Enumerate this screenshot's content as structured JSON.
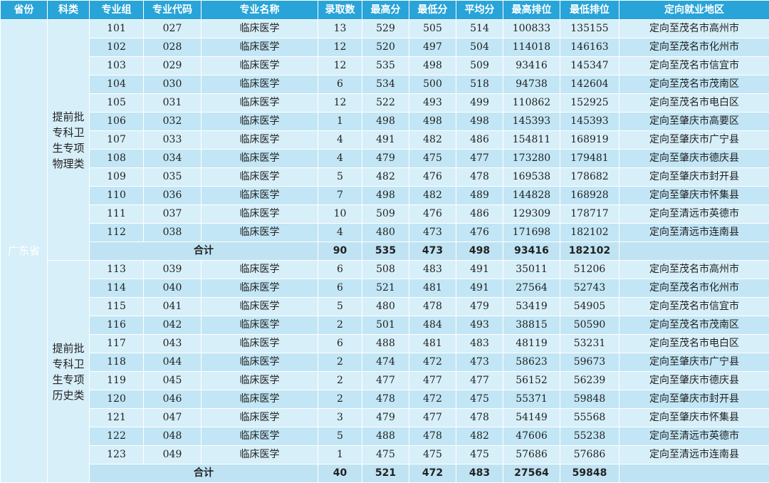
{
  "headers": [
    "省份",
    "科类",
    "专业组",
    "专业代码",
    "专业名称",
    "录取数",
    "最高分",
    "最低分",
    "平均分",
    "最高排位",
    "最低排位",
    "定向就业地区"
  ],
  "province": "广东省",
  "groups": [
    {
      "category": "提前批专科卫生专项物理类",
      "rows": [
        [
          "101",
          "027",
          "临床医学",
          "13",
          "529",
          "505",
          "514",
          "100833",
          "135155",
          "定向至茂名市高州市"
        ],
        [
          "102",
          "028",
          "临床医学",
          "12",
          "520",
          "497",
          "504",
          "114018",
          "146163",
          "定向至茂名市化州市"
        ],
        [
          "103",
          "029",
          "临床医学",
          "12",
          "535",
          "498",
          "509",
          "93416",
          "145347",
          "定向至茂名市信宜市"
        ],
        [
          "104",
          "030",
          "临床医学",
          "6",
          "534",
          "500",
          "518",
          "94738",
          "142604",
          "定向至茂名市茂南区"
        ],
        [
          "105",
          "031",
          "临床医学",
          "12",
          "522",
          "493",
          "499",
          "110862",
          "152925",
          "定向至茂名市电白区"
        ],
        [
          "106",
          "032",
          "临床医学",
          "1",
          "498",
          "498",
          "498",
          "145393",
          "145393",
          "定向至肇庆市高要区"
        ],
        [
          "107",
          "033",
          "临床医学",
          "4",
          "491",
          "482",
          "486",
          "154811",
          "168919",
          "定向至肇庆市广宁县"
        ],
        [
          "108",
          "034",
          "临床医学",
          "4",
          "479",
          "475",
          "477",
          "173280",
          "179481",
          "定向至肇庆市德庆县"
        ],
        [
          "109",
          "035",
          "临床医学",
          "5",
          "482",
          "476",
          "478",
          "169538",
          "178682",
          "定向至肇庆市封开县"
        ],
        [
          "110",
          "036",
          "临床医学",
          "7",
          "498",
          "482",
          "489",
          "144828",
          "168928",
          "定向至肇庆市怀集县"
        ],
        [
          "111",
          "037",
          "临床医学",
          "10",
          "509",
          "476",
          "486",
          "129309",
          "178717",
          "定向至清远市英德市"
        ],
        [
          "112",
          "038",
          "临床医学",
          "4",
          "480",
          "473",
          "476",
          "171698",
          "182102",
          "定向至清远市连南县"
        ]
      ],
      "total": {
        "label": "合计",
        "count": "90",
        "max": "535",
        "min": "473",
        "avg": "498",
        "max_rank": "93416",
        "min_rank": "182102"
      }
    },
    {
      "category": "提前批专科卫生专项历史类",
      "rows": [
        [
          "113",
          "039",
          "临床医学",
          "6",
          "508",
          "483",
          "491",
          "35011",
          "51206",
          "定向至茂名市高州市"
        ],
        [
          "114",
          "040",
          "临床医学",
          "6",
          "521",
          "481",
          "491",
          "27564",
          "52743",
          "定向至茂名市化州市"
        ],
        [
          "115",
          "041",
          "临床医学",
          "5",
          "480",
          "478",
          "479",
          "53419",
          "54905",
          "定向至茂名市信宜市"
        ],
        [
          "116",
          "042",
          "临床医学",
          "2",
          "501",
          "484",
          "493",
          "38815",
          "50590",
          "定向至茂名市茂南区"
        ],
        [
          "117",
          "043",
          "临床医学",
          "6",
          "488",
          "481",
          "483",
          "48119",
          "53231",
          "定向至茂名市电白区"
        ],
        [
          "118",
          "044",
          "临床医学",
          "2",
          "474",
          "472",
          "473",
          "58623",
          "59673",
          "定向至肇庆市广宁县"
        ],
        [
          "119",
          "045",
          "临床医学",
          "2",
          "477",
          "477",
          "477",
          "56152",
          "56239",
          "定向至肇庆市德庆县"
        ],
        [
          "120",
          "046",
          "临床医学",
          "2",
          "478",
          "472",
          "475",
          "55371",
          "59848",
          "定向至肇庆市封开县"
        ],
        [
          "121",
          "047",
          "临床医学",
          "3",
          "479",
          "477",
          "478",
          "54149",
          "55568",
          "定向至肇庆市怀集县"
        ],
        [
          "122",
          "048",
          "临床医学",
          "5",
          "488",
          "478",
          "482",
          "47606",
          "55238",
          "定向至清远市英德市"
        ],
        [
          "123",
          "049",
          "临床医学",
          "1",
          "475",
          "475",
          "475",
          "57686",
          "57686",
          "定向至清远市连南县"
        ]
      ],
      "total": {
        "label": "合计",
        "count": "40",
        "max": "521",
        "min": "472",
        "avg": "483",
        "max_rank": "27564",
        "min_rank": "59848"
      }
    }
  ]
}
